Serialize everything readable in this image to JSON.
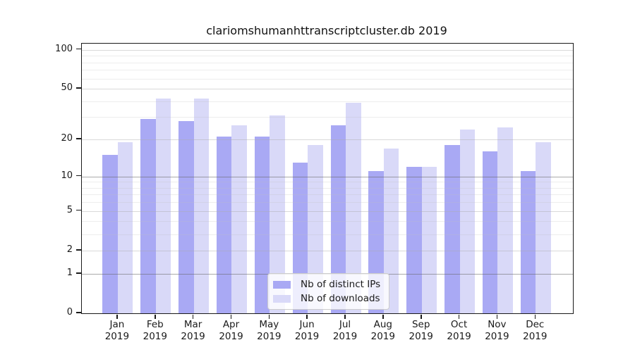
{
  "chart_data": {
    "type": "bar",
    "title": "clariomshumanhttranscriptcluster.db 2019",
    "categories": [
      "Jan",
      "Feb",
      "Mar",
      "Apr",
      "May",
      "Jun",
      "Jul",
      "Aug",
      "Sep",
      "Oct",
      "Nov",
      "Dec"
    ],
    "year": "2019",
    "series": [
      {
        "name": "Nb of distinct IPs",
        "color": "#a9a9f4",
        "values": [
          15,
          29,
          28,
          21,
          21,
          13,
          26,
          11,
          12,
          18,
          16,
          11
        ]
      },
      {
        "name": "Nb of downloads",
        "color": "#d9d9f8",
        "values": [
          19,
          42,
          42,
          26,
          31,
          18,
          39,
          17,
          12,
          24,
          25,
          19
        ]
      }
    ],
    "yscale": "log10(1+x)",
    "yticks": [
      0,
      1,
      2,
      5,
      10,
      20,
      50,
      100
    ],
    "ylim": [
      0,
      112
    ],
    "grid": {
      "strong": [
        1,
        10
      ],
      "major": [
        2,
        5,
        20,
        50,
        100
      ],
      "minor": [
        3,
        4,
        6,
        7,
        8,
        9,
        30,
        40,
        60,
        70,
        80,
        90
      ]
    },
    "grid_on": true,
    "legend_position": "bottom-center"
  }
}
